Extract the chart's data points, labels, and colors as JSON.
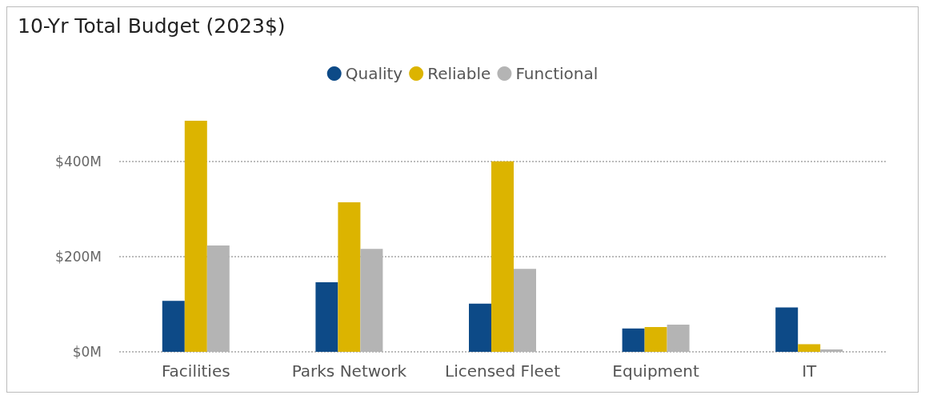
{
  "chart_data": {
    "type": "bar",
    "title": "10-Yr Total Budget (2023$)",
    "categories": [
      "Facilities",
      "Parks Network",
      "Licensed Fleet",
      "Equipment",
      "IT"
    ],
    "series": [
      {
        "name": "Quality",
        "color": "#0d4a87",
        "values": [
          107,
          146,
          101,
          49,
          93
        ]
      },
      {
        "name": "Reliable",
        "color": "#dcb400",
        "values": [
          485,
          314,
          400,
          52,
          16
        ]
      },
      {
        "name": "Functional",
        "color": "#b4b4b4",
        "values": [
          223,
          216,
          174,
          57,
          5
        ]
      }
    ],
    "ylim": [
      0,
      485
    ],
    "yticks": [
      {
        "value": 0,
        "label": "$0M"
      },
      {
        "value": 200,
        "label": "$200M"
      },
      {
        "value": 400,
        "label": "$400M"
      }
    ],
    "grid": "y",
    "legend": "top",
    "marker": "circle"
  }
}
